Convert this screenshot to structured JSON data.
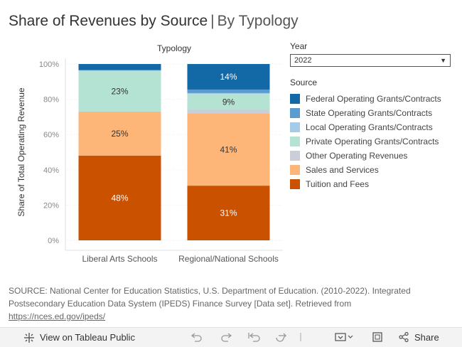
{
  "title": {
    "main": "Share of Revenues by Source",
    "separator": "|",
    "sub": "By Typology"
  },
  "chart_data": {
    "type": "bar",
    "stacked": true,
    "title": "Typology",
    "xlabel": "",
    "ylabel": "Share of Total Operating Revenue",
    "ylim": [
      0,
      100
    ],
    "yticks": [
      "0%",
      "20%",
      "40%",
      "60%",
      "80%",
      "100%"
    ],
    "categories": [
      "Liberal Arts Schools",
      "Regional/National Schools"
    ],
    "series": [
      {
        "name": "Tuition and Fees",
        "color": "#c95100",
        "values": [
          48,
          31
        ],
        "labels": [
          "48%",
          "31%"
        ]
      },
      {
        "name": "Sales and Services",
        "color": "#fdb678",
        "values": [
          25,
          41
        ],
        "labels": [
          "25%",
          "41%"
        ]
      },
      {
        "name": "Other Operating Revenues",
        "color": "#c9ced8",
        "values": [
          0,
          2
        ],
        "labels": [
          "",
          ""
        ]
      },
      {
        "name": "Private Operating Grants/Contracts",
        "color": "#b4e3d4",
        "values": [
          23,
          9
        ],
        "labels": [
          "23%",
          "9%"
        ]
      },
      {
        "name": "Local Operating Grants/Contracts",
        "color": "#a6cbe7",
        "values": [
          0.5,
          0.5
        ],
        "labels": [
          "",
          ""
        ]
      },
      {
        "name": "State Operating Grants/Contracts",
        "color": "#5b9bd0",
        "values": [
          0,
          2
        ],
        "labels": [
          "",
          ""
        ]
      },
      {
        "name": "Federal Operating Grants/Contracts",
        "color": "#1269a6",
        "values": [
          3.5,
          14.5
        ],
        "labels": [
          "",
          "14%"
        ]
      }
    ]
  },
  "filters": {
    "year_label": "Year",
    "year_value": "2022"
  },
  "legend": {
    "title": "Source",
    "items": [
      {
        "label": "Federal Operating Grants/Contracts",
        "color": "#1269a6"
      },
      {
        "label": "State Operating Grants/Contracts",
        "color": "#5b9bd0"
      },
      {
        "label": "Local Operating Grants/Contracts",
        "color": "#a6cbe7"
      },
      {
        "label": "Private Operating Grants/Contracts",
        "color": "#b4e3d4"
      },
      {
        "label": "Other Operating Revenues",
        "color": "#c9ced8"
      },
      {
        "label": "Sales and Services",
        "color": "#fdb678"
      },
      {
        "label": "Tuition and Fees",
        "color": "#c95100"
      }
    ]
  },
  "source_note": {
    "text": "SOURCE: National Center for Education Statistics, U.S. Department of Education. (2010-2022). Integrated Postsecondary Education Data System (IPEDS) Finance Survey [Data set]. Retrieved from",
    "link": "https://nces.ed.gov/ipeds/"
  },
  "toolbar": {
    "view_label": "View on Tableau Public",
    "share_label": "Share"
  }
}
